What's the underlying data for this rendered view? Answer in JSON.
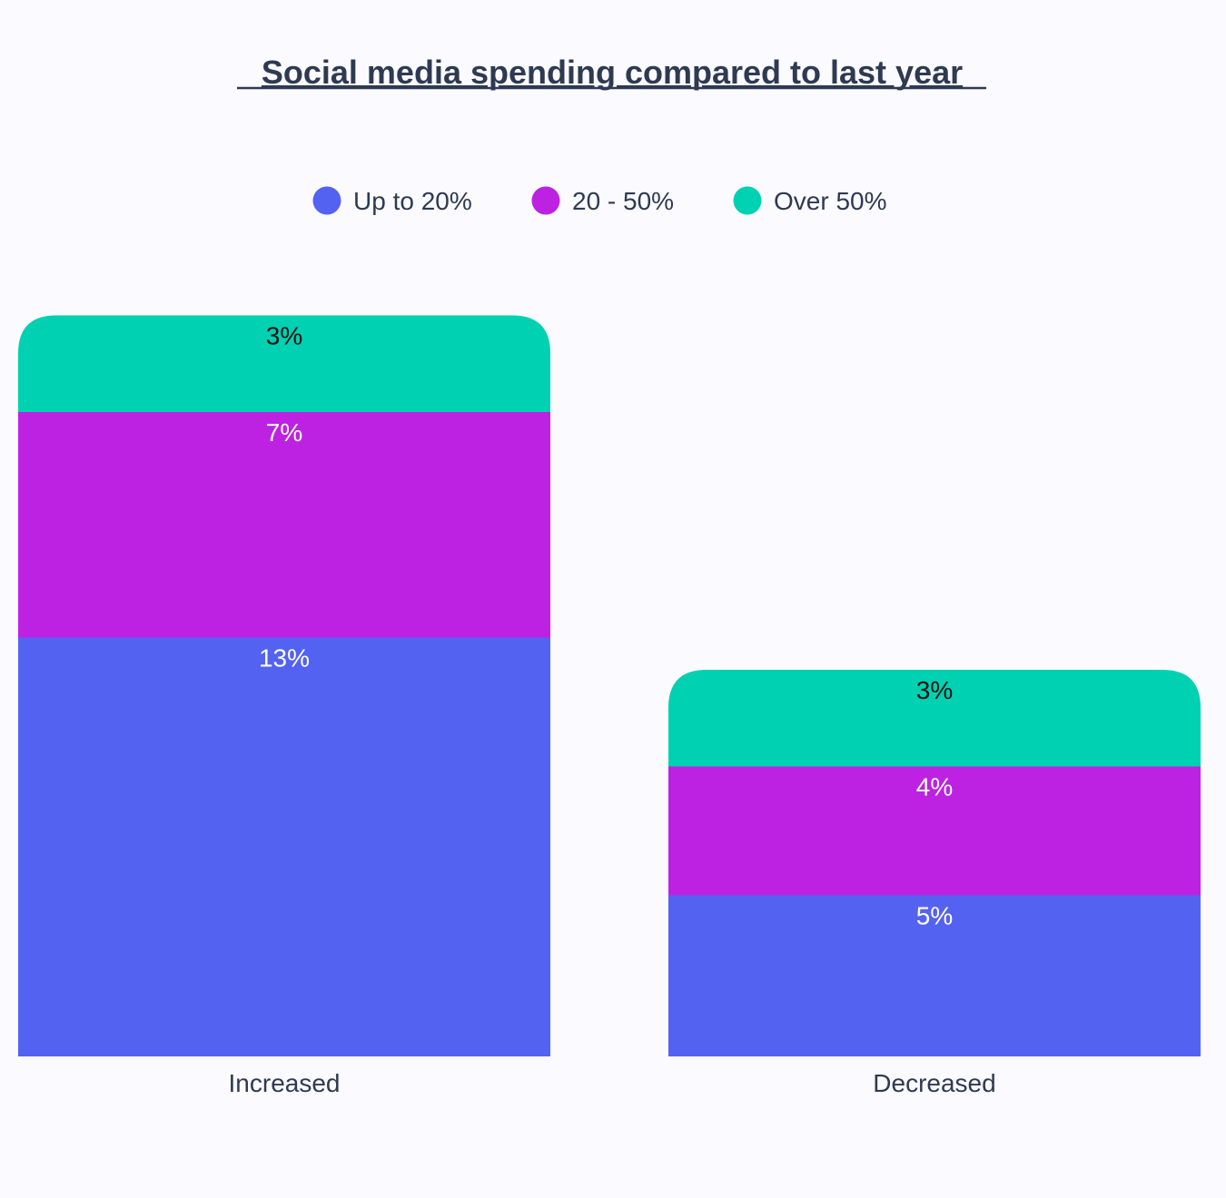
{
  "chart_data": {
    "type": "bar",
    "stacked": true,
    "title": "Social media spending compared to last year",
    "xlabel": "",
    "ylabel": "",
    "categories": [
      "Increased",
      "Decreased"
    ],
    "series": [
      {
        "name": "Up to 20%",
        "values": [
          13,
          5
        ],
        "labels": [
          "13%",
          "5%"
        ],
        "color": "#5462f2",
        "label_color": "#ffffff"
      },
      {
        "name": "20 - 50%",
        "values": [
          7,
          4
        ],
        "labels": [
          "7%",
          "4%"
        ],
        "color": "#bd22e3",
        "label_color": "#ffffff"
      },
      {
        "name": "Over 50%",
        "values": [
          3,
          3
        ],
        "labels": [
          "3%",
          "3%"
        ],
        "color": "#00d1b2",
        "label_color": "#111111"
      }
    ],
    "ylim": [
      0,
      23
    ],
    "grid": false,
    "legend_position": "top-center"
  }
}
